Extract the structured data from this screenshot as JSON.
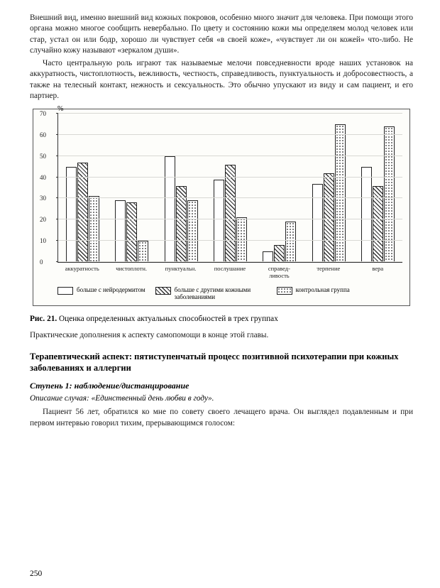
{
  "paragraphs": {
    "p1": "Внешний вид, именно внешний вид кожных покровов, особенно много значит для человека. При помощи этого органа можно многое сообщить невербально. По цвету и состоянию кожи мы определяем молод человек или стар, устал он или бодр, хорошо ли чувствует себя «в своей коже», «чувствует ли он кожей» что-либо. Не случайно кожу называют «зеркалом души».",
    "p2": "Часто центральную роль играют так называемые мелочи повседневности вроде наших установок на аккуратность, чистоплотность, вежливость, честность, справедливость, пунктуальность и добросовестность, а также на телесный контакт, нежность и сексуальность. Это обычно упускают из виду и сам пациент, и его партнер."
  },
  "chart": {
    "type": "bar",
    "y_axis_label": "%",
    "ylim": [
      0,
      70
    ],
    "ytick_step": 10,
    "categories": [
      "аккуратность",
      "чистоплотн.",
      "пунктуальн.",
      "послушание",
      "справед-ливость",
      "терпение",
      "вера"
    ],
    "series": [
      {
        "name": "больше с нейродермитом",
        "pattern": "blank",
        "values": [
          45,
          29,
          50,
          39,
          5,
          37,
          45
        ]
      },
      {
        "name": "больше с другими кожными заболеваниями",
        "pattern": "diag",
        "values": [
          47,
          28,
          36,
          46,
          8,
          42,
          36
        ]
      },
      {
        "name": "контрольная группа",
        "pattern": "dots",
        "values": [
          31,
          10,
          29,
          21,
          19,
          65,
          64
        ]
      }
    ],
    "colors": {
      "border": "#222222",
      "grid": "#d8d8d4",
      "bg": "#fdfdfa"
    }
  },
  "caption_label": "Рис. 21.",
  "caption_text": " Оценка определенных актуальных способностей в трех группах",
  "post_chart": "Практические дополнения к аспекту самопомощи в конце этой главы.",
  "heading": "Терапевтический аспект: пятиступенчатый процесс позитивной психотерапии при кожных заболеваниях и аллергии",
  "sub_heading": "Ступень 1: наблюдение/дистанцирование",
  "case_label": "Описание случая: «Единственный день любви в году».",
  "p3": "Пациент 56 лет, обратился ко мне по совету своего лечащего врача. Он выглядел подавленным и при первом интервью говорил тихим, прерывающимся голосом:",
  "page_number": "250"
}
